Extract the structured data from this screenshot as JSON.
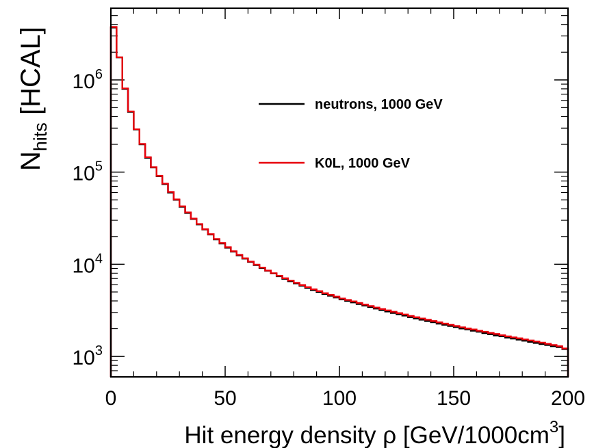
{
  "chart_data": {
    "type": "line",
    "step": true,
    "xlabel": "Hit energy density ρ [GeV/1000cm",
    "xlabel_sup": "3",
    "xlabel_close": "]",
    "ylabel_main": "N",
    "ylabel_sub": "hits",
    "ylabel_rest": " [HCAL]",
    "xlim": [
      0,
      200
    ],
    "ylim": [
      600,
      6000000
    ],
    "yscale": "log",
    "x_ticks": [
      {
        "value": 0,
        "label": "0"
      },
      {
        "value": 50,
        "label": "50"
      },
      {
        "value": 100,
        "label": "100"
      },
      {
        "value": 150,
        "label": "150"
      },
      {
        "value": 200,
        "label": "200"
      }
    ],
    "y_ticks": [
      {
        "value": 1000,
        "base": "10",
        "exp": "3"
      },
      {
        "value": 10000,
        "base": "10",
        "exp": "4"
      },
      {
        "value": 100000,
        "base": "10",
        "exp": "5"
      },
      {
        "value": 1000000,
        "base": "10",
        "exp": "6"
      }
    ],
    "bin_width": 2.5,
    "legend_position": "top-right",
    "series": [
      {
        "name": "neutrons, 1000 GeV",
        "color": "#000000",
        "values": [
          3700000,
          1750000,
          800000,
          450000,
          290000,
          200000,
          143000,
          112000,
          90000,
          74000,
          60000,
          50000,
          42000,
          36000,
          31000,
          27000,
          23800,
          21000,
          18600,
          16800,
          15100,
          13700,
          12500,
          11500,
          10600,
          9800,
          9100,
          8500,
          7950,
          7400,
          6950,
          6550,
          6200,
          5850,
          5550,
          5250,
          5000,
          4750,
          4550,
          4350,
          4150,
          4000,
          3850,
          3700,
          3560,
          3430,
          3300,
          3180,
          3070,
          2960,
          2860,
          2770,
          2670,
          2580,
          2500,
          2420,
          2350,
          2270,
          2200,
          2140,
          2080,
          2010,
          1960,
          1900,
          1850,
          1790,
          1740,
          1690,
          1650,
          1600,
          1560,
          1520,
          1480,
          1440,
          1400,
          1360,
          1330,
          1290,
          1260,
          1200
        ]
      },
      {
        "name": "K0L, 1000 GeV",
        "color": "#e8000b",
        "values": [
          3750000,
          1760000,
          810000,
          455000,
          292000,
          202000,
          145000,
          113000,
          91000,
          75000,
          61000,
          50500,
          42500,
          36500,
          31300,
          27300,
          24000,
          21200,
          18800,
          17000,
          15300,
          13850,
          12650,
          11600,
          10700,
          9900,
          9200,
          8550,
          8000,
          7500,
          7050,
          6650,
          6300,
          5950,
          5650,
          5350,
          5100,
          4850,
          4650,
          4450,
          4250,
          4100,
          3950,
          3800,
          3650,
          3520,
          3390,
          3270,
          3160,
          3050,
          2950,
          2850,
          2750,
          2660,
          2580,
          2500,
          2420,
          2340,
          2270,
          2200,
          2140,
          2070,
          2010,
          1960,
          1900,
          1850,
          1800,
          1750,
          1700,
          1650,
          1610,
          1570,
          1530,
          1490,
          1450,
          1410,
          1370,
          1330,
          1290,
          1220
        ]
      }
    ]
  }
}
